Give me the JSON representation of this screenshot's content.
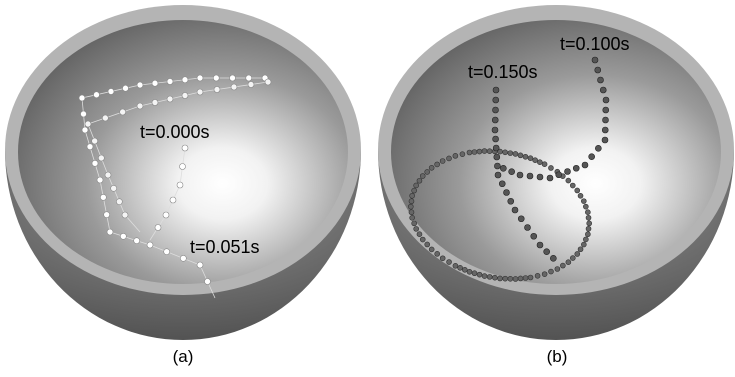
{
  "figure": {
    "panels": [
      {
        "caption": "(a)",
        "annotations": [
          "t=0.000s",
          "t=0.051s"
        ]
      },
      {
        "caption": "(b)",
        "annotations": [
          "t=0.150s",
          "t=0.100s"
        ]
      }
    ]
  }
}
